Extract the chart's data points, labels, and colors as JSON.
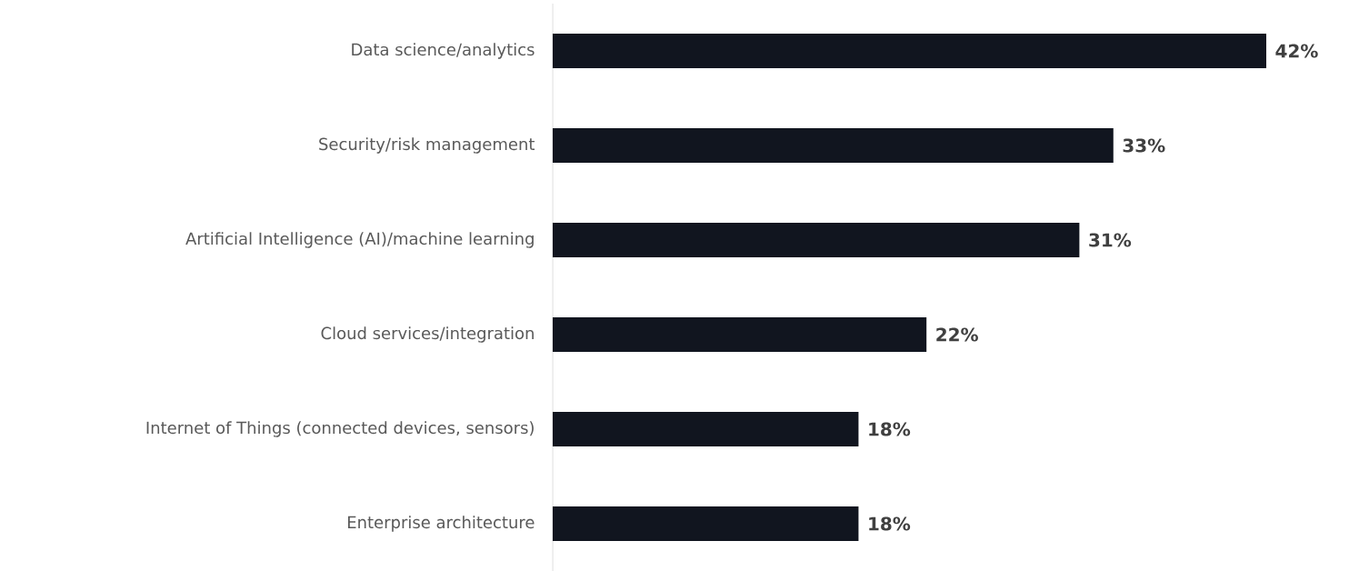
{
  "chart_data": {
    "type": "bar",
    "orientation": "horizontal",
    "categories": [
      "Data science/analytics",
      "Security/risk management",
      "Artificial Intelligence (AI)/machine learning",
      "Cloud services/integration",
      "Internet of Things  (connected devices, sensors)",
      "Enterprise architecture"
    ],
    "values": [
      42,
      33,
      31,
      22,
      18,
      18
    ],
    "value_labels": [
      "42%",
      "33%",
      "31%",
      "22%",
      "18%",
      "18%"
    ],
    "color": "#11151f"
  }
}
